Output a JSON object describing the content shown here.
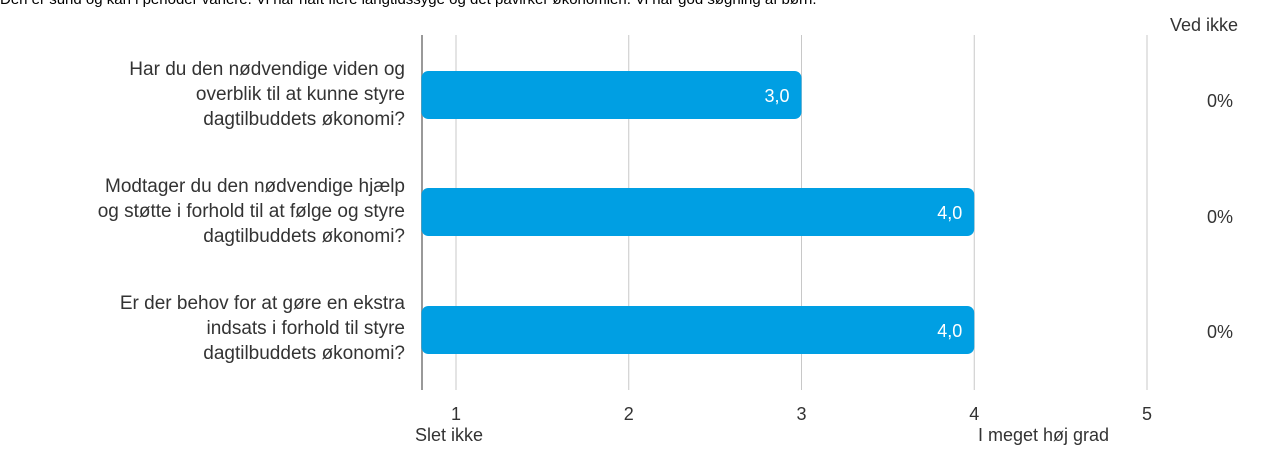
{
  "note": "Den er sund og kan i perioder variere. Vi har haft flere langtidssyge og det påvirker økonomien. Vi har god søgning af børn.",
  "ved_ikke_header": "Ved ikke",
  "colors": {
    "bar": "#009fe3",
    "grid": "#c8c8c8",
    "axis": "#999999"
  },
  "chart_data": {
    "type": "bar",
    "orientation": "horizontal",
    "categories": [
      [
        "Har du den nødvendige viden og",
        "overblik til at kunne styre",
        "dagtilbuddets økonomi?"
      ],
      [
        "Modtager du den nødvendige hjælp",
        "og støtte i forhold til at følge og styre",
        "dagtilbuddets økonomi?"
      ],
      [
        "Er der behov for at gøre en ekstra",
        "indsats i forhold til styre",
        "dagtilbuddets økonomi?"
      ]
    ],
    "values": [
      3.0,
      4.0,
      4.0
    ],
    "value_labels": [
      "3,0",
      "4,0",
      "4,0"
    ],
    "ved_ikke": [
      "0%",
      "0%",
      "0%"
    ],
    "xlim": [
      0.8,
      5
    ],
    "xticks": [
      "1",
      "2",
      "3",
      "4",
      "5"
    ],
    "xtick_values": [
      1,
      2,
      3,
      4,
      5
    ],
    "scale_low_label": "Slet ikke",
    "scale_high_label": "I meget høj grad",
    "grid": true
  }
}
